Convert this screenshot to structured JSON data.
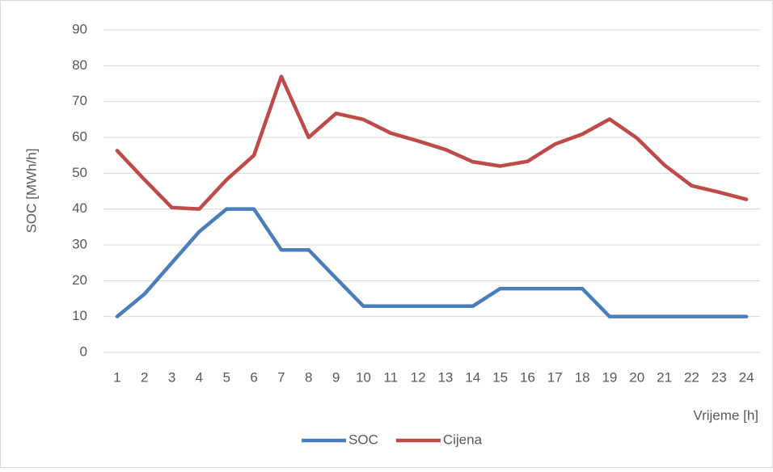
{
  "chart_data": {
    "type": "line",
    "ylabel": "SOC [MWh/h]",
    "xlabel": "Vrijeme [h]",
    "categories": [
      "1",
      "2",
      "3",
      "4",
      "5",
      "6",
      "7",
      "8",
      "9",
      "10",
      "11",
      "12",
      "13",
      "14",
      "15",
      "16",
      "17",
      "18",
      "19",
      "20",
      "21",
      "22",
      "23",
      "24"
    ],
    "series": [
      {
        "name": "SOC",
        "color": "#4a7ebb",
        "values": [
          10,
          16.3,
          25,
          33.7,
          40,
          40,
          28.6,
          28.6,
          20.7,
          12.9,
          12.9,
          12.9,
          12.9,
          12.9,
          17.8,
          17.8,
          17.8,
          17.8,
          10,
          10,
          10,
          10,
          10,
          10
        ]
      },
      {
        "name": "Cijena",
        "color": "#be4b48",
        "values": [
          56.3,
          48.2,
          40.4,
          40,
          48.2,
          55,
          77,
          60,
          66.7,
          65,
          61.2,
          59,
          56.6,
          53.2,
          52,
          53.3,
          58.1,
          60.9,
          65.1,
          59.8,
          52.3,
          46.5,
          44.7,
          42.7
        ]
      }
    ],
    "ylim": [
      0,
      90
    ],
    "yticks": [
      0,
      10,
      20,
      30,
      40,
      50,
      60,
      70,
      80,
      90
    ],
    "grid": true,
    "legend": "bottom"
  }
}
